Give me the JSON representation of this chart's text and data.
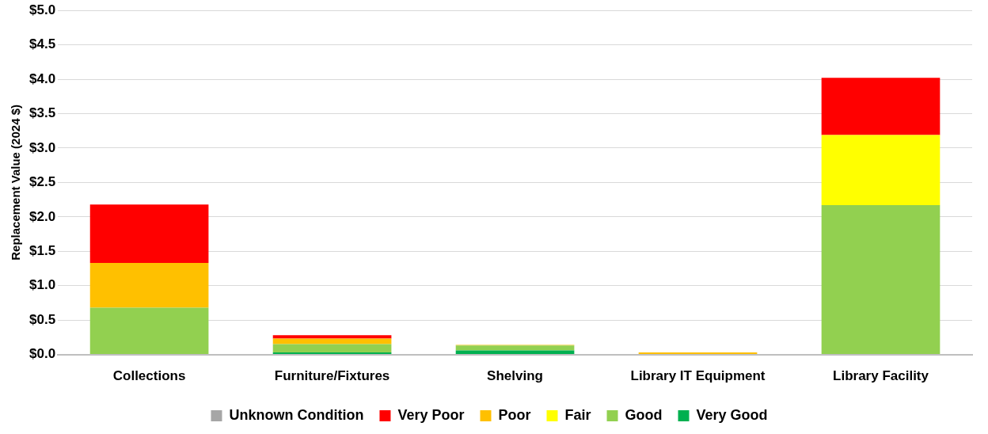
{
  "chart_data": {
    "type": "bar",
    "stacked": true,
    "ylabel": "Replacement Value (2024 $)",
    "categories": [
      "Collections",
      "Furniture/Fixtures",
      "Shelving",
      "Library IT Equipment",
      "Library Facility"
    ],
    "series": [
      {
        "name": "Very Good",
        "color": "#00b050",
        "values": [
          0,
          0.03,
          0.06,
          0,
          0
        ]
      },
      {
        "name": "Good",
        "color": "#92d050",
        "values": [
          0.68,
          0.12,
          0.07,
          0,
          2.17
        ]
      },
      {
        "name": "Fair",
        "color": "#ffff00",
        "values": [
          0,
          0,
          0,
          0,
          1.02
        ]
      },
      {
        "name": "Poor",
        "color": "#ffc000",
        "values": [
          0.65,
          0.08,
          0.01,
          0.03,
          0
        ]
      },
      {
        "name": "Very Poor",
        "color": "#ff0000",
        "values": [
          0.85,
          0.05,
          0,
          0,
          0.83
        ]
      },
      {
        "name": "Unknown Condition",
        "color": "#a6a6a6",
        "values": [
          0,
          0,
          0,
          0,
          0
        ]
      }
    ],
    "ylim": [
      0,
      5
    ],
    "yticks": [
      {
        "value": 0,
        "label": "$0.0"
      },
      {
        "value": 0.5,
        "label": "$0.5"
      },
      {
        "value": 1,
        "label": "$1.0"
      },
      {
        "value": 1.5,
        "label": "$1.5"
      },
      {
        "value": 2,
        "label": "$2.0"
      },
      {
        "value": 2.5,
        "label": "$2.5"
      },
      {
        "value": 3,
        "label": "$3.0"
      },
      {
        "value": 3.5,
        "label": "$3.5"
      },
      {
        "value": 4,
        "label": "$4.0"
      },
      {
        "value": 4.5,
        "label": "$4.5"
      },
      {
        "value": 5,
        "label": "$5.0"
      }
    ],
    "grid": "y",
    "legend": "bottom"
  }
}
